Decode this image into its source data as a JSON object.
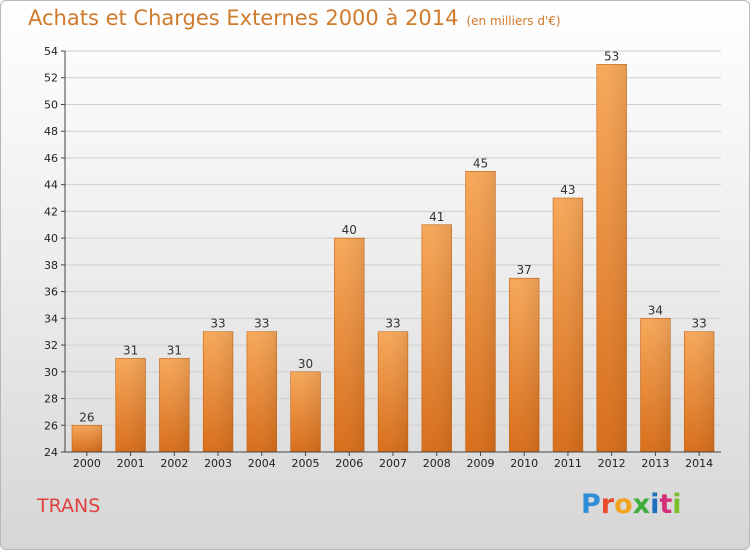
{
  "title": "Achats et Charges Externes 2000 à 2014",
  "unit": "(en milliers d'€)",
  "location": "TRANS",
  "logo": {
    "text": "Proxiti"
  },
  "colors": {
    "bar_light": "#f7a85a",
    "bar_dark": "#d86e1a",
    "title": "#d07a2c",
    "location": "#e04040"
  },
  "chart_data": {
    "type": "bar",
    "title": "Achats et Charges Externes 2000 à 2014",
    "xlabel": "",
    "ylabel": "",
    "ylim": [
      24,
      54
    ],
    "yticks": [
      24,
      26,
      28,
      30,
      32,
      34,
      36,
      38,
      40,
      42,
      44,
      46,
      48,
      50,
      52,
      54
    ],
    "grid": true,
    "categories": [
      "2000",
      "2001",
      "2002",
      "2003",
      "2004",
      "2005",
      "2006",
      "2007",
      "2008",
      "2009",
      "2010",
      "2011",
      "2012",
      "2013",
      "2014"
    ],
    "values": [
      26,
      31,
      31,
      33,
      33,
      30,
      40,
      33,
      41,
      45,
      37,
      43,
      53,
      34,
      33
    ]
  }
}
